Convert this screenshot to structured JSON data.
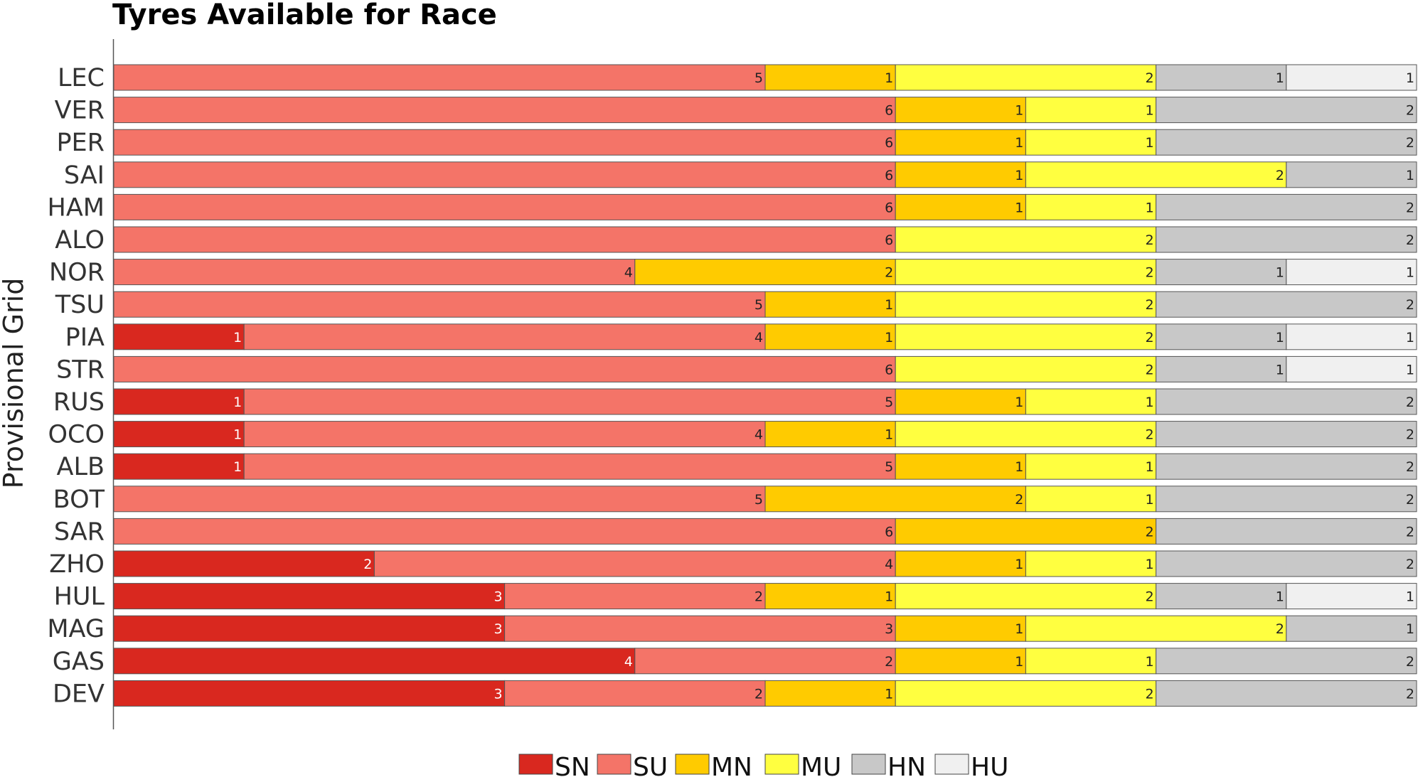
{
  "chart_data": {
    "type": "bar",
    "orientation": "horizontal",
    "stacked": true,
    "title": "Tyres Available for Race",
    "xlabel": "",
    "ylabel": "Provisional Grid",
    "xlim": [
      0,
      10
    ],
    "grid": false,
    "legend_position": "bottom",
    "categories": [
      "LEC",
      "VER",
      "PER",
      "SAI",
      "HAM",
      "ALO",
      "NOR",
      "TSU",
      "PIA",
      "STR",
      "RUS",
      "OCO",
      "ALB",
      "BOT",
      "SAR",
      "ZHO",
      "HUL",
      "MAG",
      "GAS",
      "DEV"
    ],
    "series": [
      {
        "name": "SN",
        "color": "#d9281f",
        "label_color": "#ffffff",
        "values": [
          0,
          0,
          0,
          0,
          0,
          0,
          0,
          0,
          1,
          0,
          1,
          1,
          1,
          0,
          0,
          2,
          3,
          3,
          4,
          3
        ]
      },
      {
        "name": "SU",
        "color": "#f47468",
        "label_color": "#222222",
        "values": [
          5,
          6,
          6,
          6,
          6,
          6,
          4,
          5,
          4,
          6,
          5,
          4,
          5,
          5,
          6,
          4,
          2,
          3,
          2,
          2
        ]
      },
      {
        "name": "MN",
        "color": "#ffcb00",
        "label_color": "#222222",
        "values": [
          1,
          1,
          1,
          1,
          1,
          0,
          2,
          1,
          1,
          0,
          1,
          1,
          1,
          2,
          2,
          1,
          1,
          1,
          1,
          1
        ]
      },
      {
        "name": "MU",
        "color": "#ffff40",
        "label_color": "#222222",
        "values": [
          2,
          1,
          1,
          2,
          1,
          2,
          2,
          2,
          2,
          2,
          1,
          2,
          1,
          1,
          0,
          1,
          2,
          2,
          1,
          2
        ]
      },
      {
        "name": "HN",
        "color": "#c8c8c8",
        "label_color": "#222222",
        "values": [
          1,
          2,
          2,
          1,
          2,
          2,
          1,
          2,
          1,
          1,
          2,
          2,
          2,
          2,
          2,
          2,
          1,
          1,
          2,
          2
        ]
      },
      {
        "name": "HU",
        "color": "#f0f0f0",
        "label_color": "#222222",
        "values": [
          1,
          0,
          0,
          0,
          0,
          0,
          1,
          0,
          1,
          1,
          0,
          0,
          0,
          0,
          0,
          0,
          1,
          0,
          0,
          0
        ]
      }
    ]
  }
}
